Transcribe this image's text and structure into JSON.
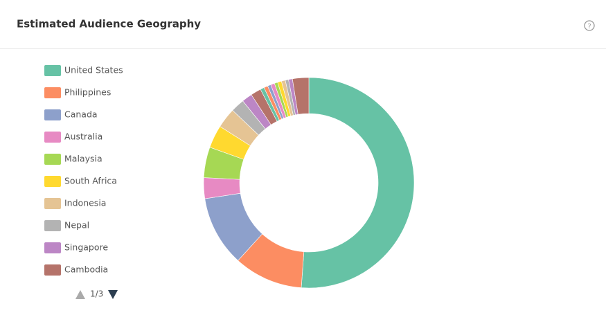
{
  "header": {
    "title": "Estimated Audience Geography"
  },
  "chart_data": {
    "type": "donut",
    "categories": [
      "United States",
      "Philippines",
      "Canada",
      "Australia",
      "Malaysia",
      "South Africa",
      "Indonesia",
      "Nepal",
      "Singapore",
      "Cambodia",
      null,
      null,
      null,
      null,
      null,
      null,
      null,
      null,
      null,
      null
    ],
    "values": [
      51.1,
      10.6,
      10.8,
      3.2,
      4.7,
      3.5,
      3.1,
      2.1,
      1.6,
      1.6,
      0.6,
      0.6,
      0.5,
      0.6,
      0.5,
      0.6,
      0.6,
      0.5,
      0.6,
      2.5
    ],
    "colors": [
      "#66c2a5",
      "#fc8d62",
      "#8da0cb",
      "#e78ac3",
      "#a6d854",
      "#ffd92f",
      "#e5c494",
      "#b3b3b3",
      "#bc86c5",
      "#b5736a",
      "#66c2a5",
      "#fc8d62",
      "#8da0cb",
      "#e78ac3",
      "#a6d854",
      "#ffd92f",
      "#e5c494",
      "#b3b3b3",
      "#bc86c5",
      "#b5736a"
    ]
  },
  "pager": {
    "label": "1/3"
  }
}
